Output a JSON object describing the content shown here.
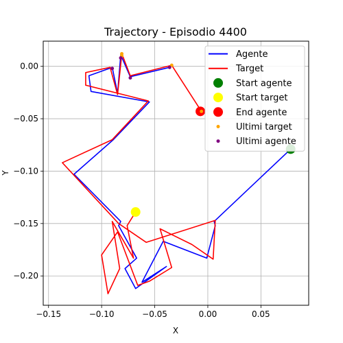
{
  "chart_data": {
    "type": "line",
    "title": "Trajectory - Episodio 4400",
    "xlabel": "X",
    "ylabel": "Y",
    "xlim": [
      -0.155,
      0.095
    ],
    "ylim": [
      -0.228,
      0.024
    ],
    "xticks": [
      -0.15,
      -0.1,
      -0.05,
      0.0,
      0.05
    ],
    "xtick_labels": [
      "−0.15",
      "−0.10",
      "−0.05",
      "0.00",
      "0.05"
    ],
    "yticks": [
      0.0,
      -0.05,
      -0.1,
      -0.15,
      -0.2
    ],
    "ytick_labels": [
      "0.00",
      "−0.05",
      "−0.10",
      "−0.15",
      "−0.20"
    ],
    "grid": true,
    "legend_position": "top-right",
    "legend": [
      {
        "label": "Agente",
        "kind": "line",
        "color": "#0000ff"
      },
      {
        "label": "Target",
        "kind": "line",
        "color": "#ff0000"
      },
      {
        "label": "Start agente",
        "kind": "marker",
        "color": "#008000",
        "size": "large"
      },
      {
        "label": "Start target",
        "kind": "marker",
        "color": "#ffff00",
        "size": "large"
      },
      {
        "label": "End agente",
        "kind": "marker",
        "color": "#ff0000",
        "size": "large"
      },
      {
        "label": "Ultimi target",
        "kind": "marker",
        "color": "#ffa500",
        "size": "small"
      },
      {
        "label": "Ultimi agente",
        "kind": "marker",
        "color": "#800080",
        "size": "small"
      }
    ],
    "series": [
      {
        "name": "Agente",
        "color": "#0000ff",
        "points": [
          [
            0.078,
            -0.079
          ],
          [
            0.006,
            -0.148
          ],
          [
            0.007,
            -0.152
          ],
          [
            -0.001,
            -0.183
          ],
          [
            -0.042,
            -0.167
          ],
          [
            -0.062,
            -0.206
          ],
          [
            -0.039,
            -0.191
          ],
          [
            -0.068,
            -0.212
          ],
          [
            -0.078,
            -0.193
          ],
          [
            -0.067,
            -0.183
          ],
          [
            -0.084,
            -0.152
          ],
          [
            -0.082,
            -0.148
          ],
          [
            -0.126,
            -0.103
          ],
          [
            -0.089,
            -0.07
          ],
          [
            -0.055,
            -0.034
          ],
          [
            -0.11,
            -0.024
          ],
          [
            -0.112,
            -0.009
          ],
          [
            -0.09,
            -0.001
          ],
          [
            -0.085,
            -0.026
          ],
          [
            -0.082,
            0.011
          ],
          [
            -0.073,
            -0.01
          ],
          [
            -0.036,
            -0.001
          ]
        ]
      },
      {
        "name": "Target",
        "color": "#ff0000",
        "points": [
          [
            -0.068,
            -0.139
          ],
          [
            -0.076,
            -0.152
          ],
          [
            -0.07,
            -0.183
          ],
          [
            -0.09,
            -0.148
          ],
          [
            -0.083,
            -0.193
          ],
          [
            -0.094,
            -0.217
          ],
          [
            -0.1,
            -0.18
          ],
          [
            -0.085,
            -0.158
          ],
          [
            -0.066,
            -0.209
          ],
          [
            -0.055,
            -0.205
          ],
          [
            -0.034,
            -0.192
          ],
          [
            -0.045,
            -0.155
          ],
          [
            -0.015,
            -0.17
          ],
          [
            0.005,
            -0.184
          ],
          [
            0.007,
            -0.147
          ],
          [
            -0.058,
            -0.168
          ],
          [
            -0.084,
            -0.15
          ],
          [
            -0.137,
            -0.092
          ],
          [
            -0.09,
            -0.07
          ],
          [
            -0.056,
            -0.033
          ],
          [
            -0.115,
            -0.018
          ],
          [
            -0.115,
            -0.006
          ],
          [
            -0.092,
            -0.001
          ],
          [
            -0.085,
            -0.027
          ],
          [
            -0.081,
            0.012
          ],
          [
            -0.073,
            -0.009
          ],
          [
            -0.034,
            0.001
          ],
          [
            -0.006,
            -0.043
          ]
        ]
      }
    ],
    "markers": [
      {
        "name": "Start agente",
        "x": 0.078,
        "y": -0.079,
        "color": "#008000",
        "size": "large"
      },
      {
        "name": "Start target",
        "x": -0.068,
        "y": -0.139,
        "color": "#ffff00",
        "size": "large"
      },
      {
        "name": "End agente",
        "x": -0.007,
        "y": -0.043,
        "color": "#ff0000",
        "size": "large"
      },
      {
        "name": "Ultimi target",
        "x": -0.081,
        "y": 0.012,
        "color": "#ffa500",
        "size": "small"
      },
      {
        "name": "Ultimi target",
        "x": -0.081,
        "y": 0.01,
        "color": "#ffa500",
        "size": "small"
      },
      {
        "name": "Ultimi target",
        "x": -0.034,
        "y": 0.001,
        "color": "#ffa500",
        "size": "small"
      },
      {
        "name": "Ultimi target",
        "x": -0.006,
        "y": -0.043,
        "color": "#ffa500",
        "size": "small"
      },
      {
        "name": "Ultimi agente",
        "x": -0.09,
        "y": -0.002,
        "color": "#800080",
        "size": "small"
      },
      {
        "name": "Ultimi agente",
        "x": -0.082,
        "y": 0.008,
        "color": "#800080",
        "size": "small"
      },
      {
        "name": "Ultimi agente",
        "x": -0.073,
        "y": -0.011,
        "color": "#800080",
        "size": "small"
      },
      {
        "name": "Ultimi agente",
        "x": -0.036,
        "y": -0.001,
        "color": "#800080",
        "size": "small"
      }
    ]
  }
}
